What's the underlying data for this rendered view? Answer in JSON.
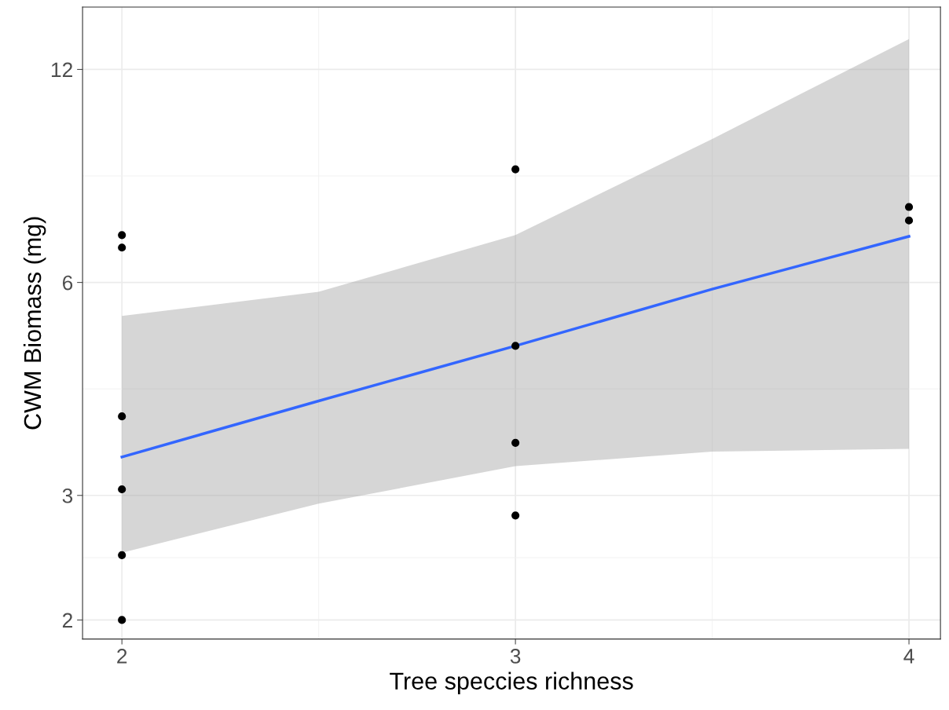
{
  "chart_data": {
    "type": "scatter",
    "xlabel": "Tree speccies richness",
    "ylabel": "CWM Biomass (mg)",
    "log": "y",
    "grid": true,
    "xlim": [
      1.9,
      4.08
    ],
    "xticks": [
      2,
      3,
      4
    ],
    "ylim": [
      1.88,
      14.7
    ],
    "yticks": [
      2,
      3,
      6,
      12
    ],
    "series": [
      {
        "type": "line",
        "color": "#3366ff",
        "x": [
          2,
          2.5,
          3,
          3.5,
          4
        ],
        "values": [
          3.4,
          4.08,
          4.88,
          5.87,
          6.97
        ],
        "lower": [
          2.49,
          2.92,
          3.3,
          3.46,
          3.49
        ],
        "upper": [
          5.38,
          5.82,
          7.0,
          9.57,
          13.25
        ]
      },
      {
        "type": "scatter",
        "marker": "circle",
        "color": "#000000",
        "x": [
          2,
          2,
          2,
          2,
          2,
          2,
          3,
          3,
          3,
          3,
          4,
          4
        ],
        "values": [
          7.0,
          6.72,
          3.88,
          3.06,
          2.47,
          2.0,
          8.67,
          4.88,
          3.56,
          2.81,
          7.67,
          7.34
        ]
      }
    ]
  }
}
